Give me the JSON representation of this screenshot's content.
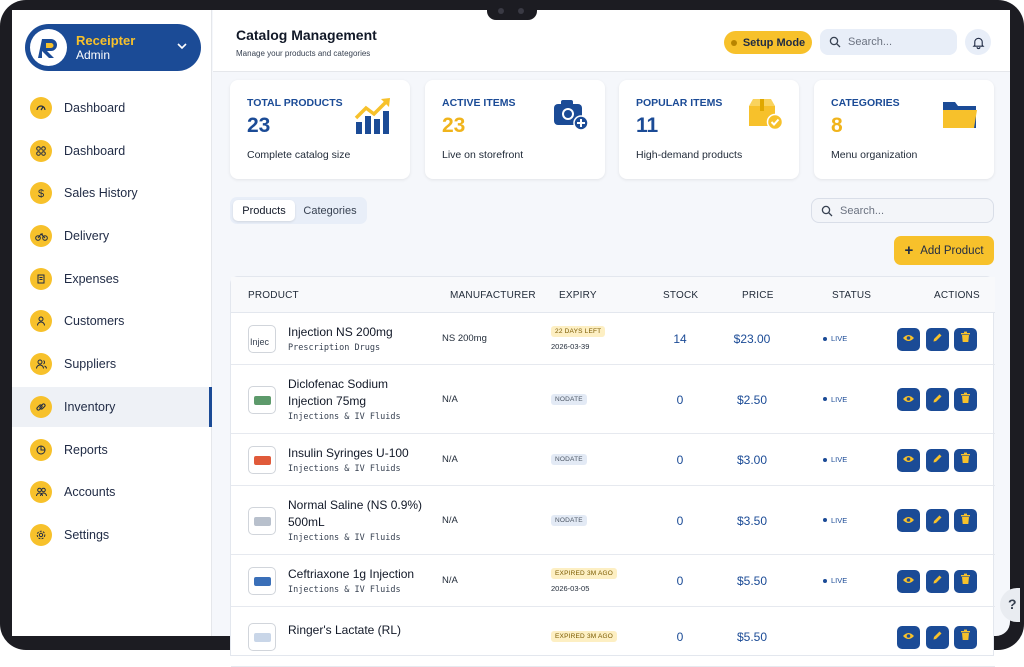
{
  "brand": {
    "name": "Receipter",
    "role": "Admin",
    "logo_letter": "R"
  },
  "sidebar": {
    "items": [
      {
        "label": "Dashboard",
        "icon": "gauge-icon"
      },
      {
        "label": "Dashboard",
        "icon": "grid-icon"
      },
      {
        "label": "Sales History",
        "icon": "dollar-icon"
      },
      {
        "label": "Delivery",
        "icon": "bike-icon"
      },
      {
        "label": "Expenses",
        "icon": "receipt-icon"
      },
      {
        "label": "Customers",
        "icon": "user-icon"
      },
      {
        "label": "Suppliers",
        "icon": "users-icon"
      },
      {
        "label": "Inventory",
        "icon": "link-icon",
        "active": true
      },
      {
        "label": "Reports",
        "icon": "pie-icon"
      },
      {
        "label": "Accounts",
        "icon": "accounts-icon"
      },
      {
        "label": "Settings",
        "icon": "gear-icon"
      }
    ]
  },
  "header": {
    "title": "Catalog Management",
    "subtitle": "Manage your products and categories",
    "setup_label": "Setup Mode",
    "search_placeholder": "Search..."
  },
  "stats": [
    {
      "title": "TOTAL PRODUCTS",
      "value": "23",
      "subtitle": "Complete catalog size",
      "icon": "chart-up-icon",
      "value_color": "#1b4b96"
    },
    {
      "title": "ACTIVE ITEMS",
      "value": "23",
      "subtitle": "Live on storefront",
      "icon": "camera-plus-icon",
      "value_color": "#f0b41c"
    },
    {
      "title": "POPULAR ITEMS",
      "value": "11",
      "subtitle": "High-demand products",
      "icon": "box-check-icon",
      "value_color": "#1b4b96"
    },
    {
      "title": "CATEGORIES",
      "value": "8",
      "subtitle": "Menu organization",
      "icon": "folder-icon",
      "value_color": "#f0b41c"
    }
  ],
  "tabs": [
    {
      "label": "Products",
      "active": true
    },
    {
      "label": "Categories"
    }
  ],
  "list_search_placeholder": "Search...",
  "add_button_label": "Add Product",
  "table": {
    "columns": [
      "PRODUCT",
      "MANUFACTURER",
      "EXPIRY",
      "STOCK",
      "PRICE",
      "STATUS",
      "ACTIONS"
    ],
    "rows": [
      {
        "name": "Injection NS 200mg",
        "category": "Prescription Drugs",
        "thumb_text": "Injec",
        "manufacturer": "NS 200mg",
        "expiry_badge": "22 DAYS LEFT",
        "expiry_type": "warn",
        "expiry_date": "2026-03-39",
        "stock": "14",
        "price": "$23.00",
        "status": "LIVE"
      },
      {
        "name": "Diclofenac Sodium Injection 75mg",
        "category": "Injections & IV Fluids",
        "manufacturer": "N/A",
        "expiry_badge": "NODATE",
        "expiry_type": "nodate",
        "stock": "0",
        "price": "$2.50",
        "status": "LIVE"
      },
      {
        "name": "Insulin Syringes U-100",
        "category": "Injections & IV Fluids",
        "manufacturer": "N/A",
        "expiry_badge": "NODATE",
        "expiry_type": "nodate",
        "stock": "0",
        "price": "$3.00",
        "status": "LIVE"
      },
      {
        "name": "Normal Saline (NS 0.9%) 500mL",
        "category": "Injections & IV Fluids",
        "manufacturer": "N/A",
        "expiry_badge": "NODATE",
        "expiry_type": "nodate",
        "stock": "0",
        "price": "$3.50",
        "status": "LIVE"
      },
      {
        "name": "Ceftriaxone 1g Injection",
        "category": "Injections & IV Fluids",
        "manufacturer": "N/A",
        "expiry_badge": "EXPIRED 3M AGO",
        "expiry_type": "warn",
        "expiry_date": "2026-03-05",
        "stock": "0",
        "price": "$5.50",
        "status": "LIVE"
      },
      {
        "name": "Ringer's Lactate (RL)",
        "category": "",
        "manufacturer": "",
        "expiry_badge": "EXPIRED 3M AGO",
        "expiry_type": "warn",
        "stock": "0",
        "price": "$5.50",
        "status": ""
      }
    ]
  },
  "help_label": "?",
  "colors": {
    "primary": "#1b4b96",
    "accent": "#f7c12b"
  }
}
